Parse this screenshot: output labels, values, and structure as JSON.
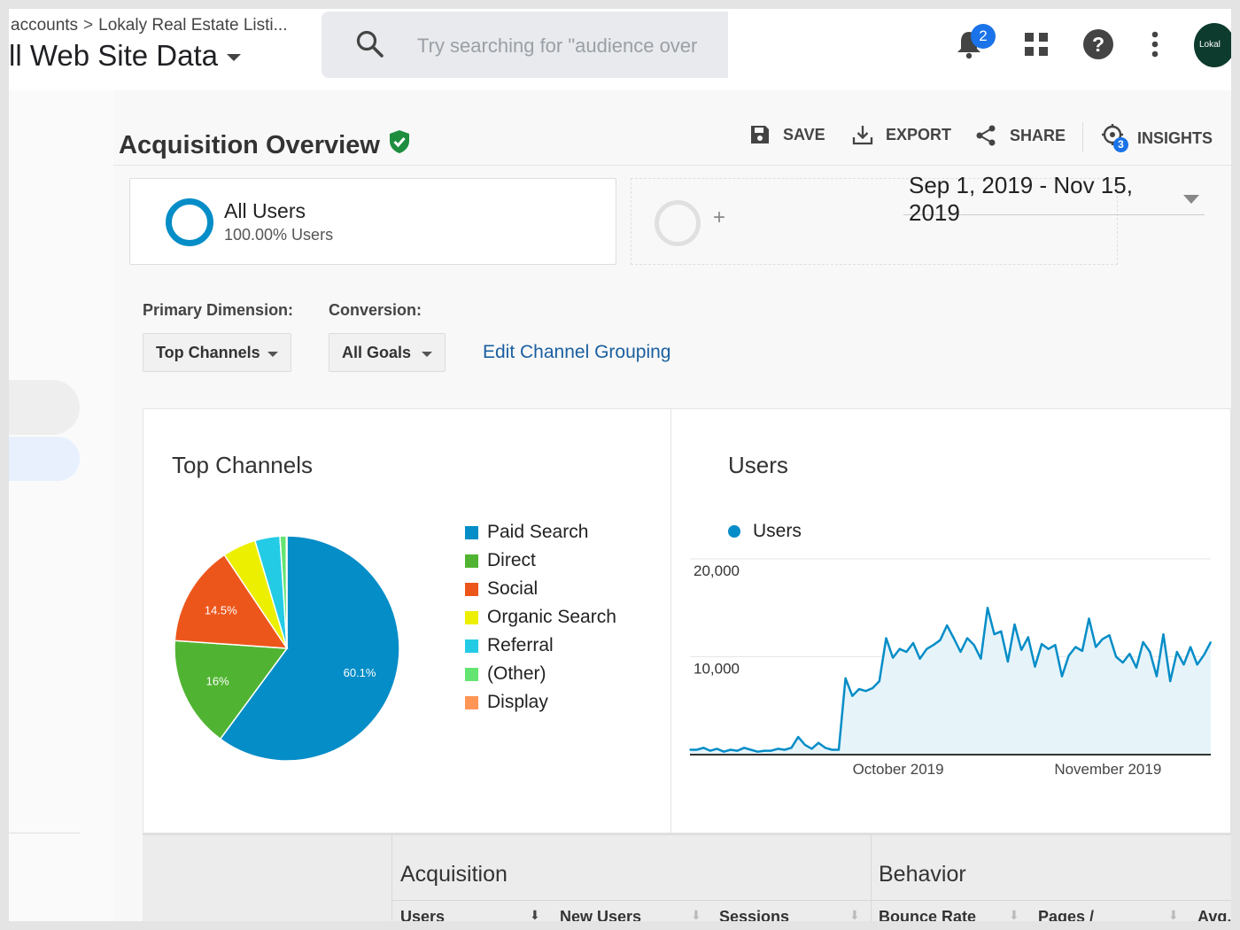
{
  "header": {
    "breadcrumb": [
      "accounts",
      "Lokaly Real Estate Listi..."
    ],
    "breadcrumb_separator": ">",
    "view_name": "ll Web Site Data",
    "search_placeholder": "Try searching for \"audience over",
    "notification_count": "2",
    "avatar_text": "Lokal"
  },
  "page": {
    "title": "Acquisition Overview",
    "actions": {
      "save": "SAVE",
      "export": "EXPORT",
      "share": "SHARE",
      "insights": "INSIGHTS"
    },
    "insights_count": "3"
  },
  "segment": {
    "name": "All Users",
    "percent": "100.00% Users",
    "add": "+"
  },
  "date_range": "Sep 1, 2019 - Nov 15, 2019",
  "controls": {
    "primary_dimension_label": "Primary Dimension:",
    "primary_dimension_value": "Top Channels",
    "conversion_label": "Conversion:",
    "conversion_value": "All Goals",
    "edit_link": "Edit Channel Grouping"
  },
  "colors": {
    "paid_search": "#058dc7",
    "direct": "#50b432",
    "social": "#ed561b",
    "organic_search": "#edef00",
    "referral": "#24cbe5",
    "other": "#64e572",
    "display": "#ff9655"
  },
  "chart_data": [
    {
      "type": "pie",
      "title": "Top Channels",
      "categories": [
        "Paid Search",
        "Direct",
        "Social",
        "Organic Search",
        "Referral",
        "(Other)",
        "Display"
      ],
      "values": [
        60.1,
        16,
        14.5,
        4.8,
        3.6,
        0.9,
        0.1
      ],
      "data_labels": [
        "60.1%",
        "16%",
        "14.5%",
        "",
        "",
        "",
        ""
      ],
      "colors": [
        "#058dc7",
        "#50b432",
        "#ed561b",
        "#edef00",
        "#24cbe5",
        "#64e572",
        "#ff9655"
      ]
    },
    {
      "type": "area",
      "title": "Users",
      "legend": "Users",
      "yticks": [
        "20,000",
        "10,000"
      ],
      "ylim": [
        0,
        20000
      ],
      "xticks": [
        "October 2019",
        "November 2019"
      ],
      "x_start": "2019-09-01",
      "values": [
        500,
        500,
        700,
        400,
        600,
        300,
        500,
        400,
        700,
        500,
        300,
        400,
        400,
        600,
        500,
        700,
        1800,
        1000,
        600,
        1200,
        700,
        500,
        500,
        7800,
        6000,
        6700,
        6500,
        6800,
        7500,
        11900,
        9900,
        10800,
        10500,
        11400,
        9800,
        10800,
        11200,
        11700,
        13200,
        11900,
        10500,
        11900,
        11200,
        9800,
        15000,
        12300,
        12600,
        9500,
        13300,
        10700,
        12000,
        9000,
        11300,
        10800,
        11200,
        8000,
        10100,
        11000,
        10600,
        13900,
        11000,
        11800,
        12200,
        10000,
        9400,
        10300,
        8900,
        11500,
        10500,
        8000,
        12300,
        7500,
        10500,
        9200,
        11000,
        9200,
        10200,
        11500
      ],
      "fill": "#e6f4fa",
      "stroke": "#058dc7"
    }
  ],
  "table": {
    "groups": [
      "Acquisition",
      "Behavior"
    ],
    "columns": [
      "Users",
      "New Users",
      "Sessions",
      "Bounce Rate",
      "Pages /",
      "Avg."
    ]
  }
}
